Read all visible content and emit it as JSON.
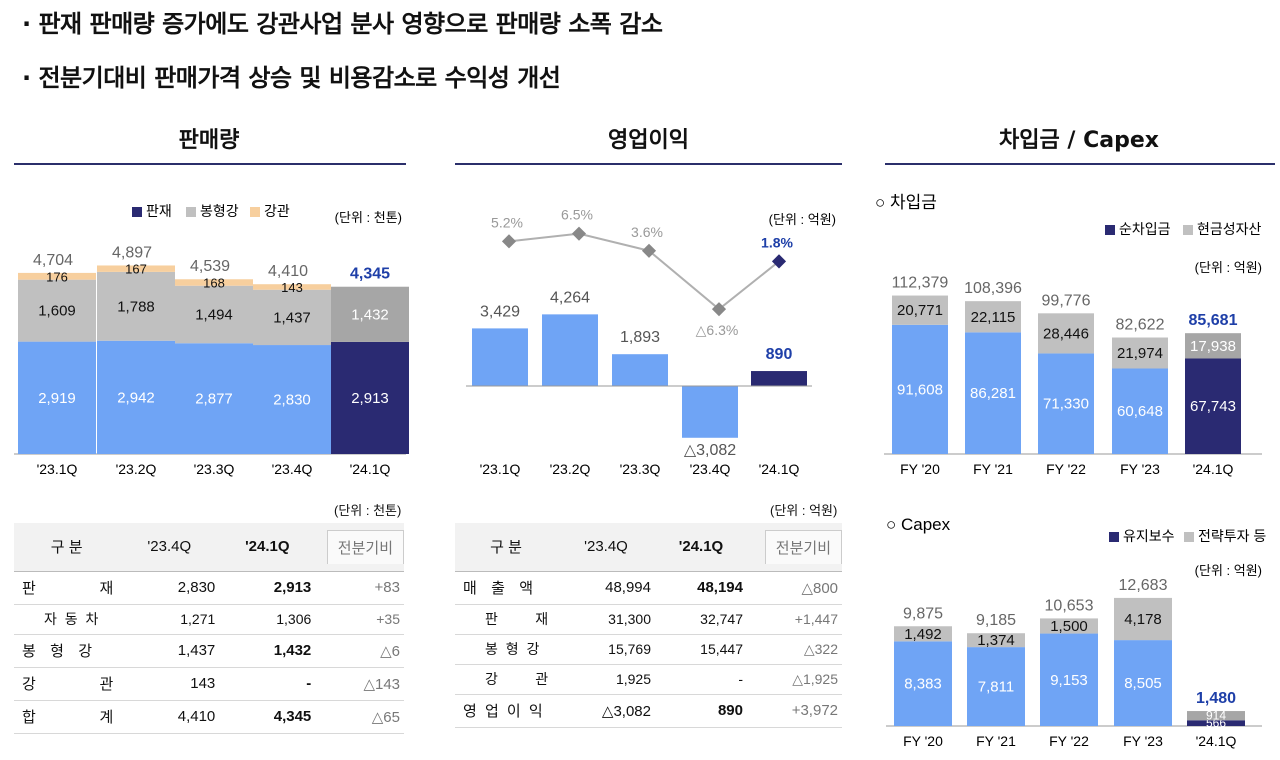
{
  "bullets": [
    "· 판재 판매량 증가에도 강관사업 분사 영향으로 판매량 소폭 감소",
    "· 전분기대비 판매가격 상승 및 비용감소로 수익성 개선"
  ],
  "sections": {
    "sales": "판매량",
    "op": "영업이익",
    "debt": "차입금 / Capex"
  },
  "colors": {
    "plate": "#2a2a72",
    "bar": "#6fa4f5",
    "grey": "#c0c0c0",
    "pipe": "#f7cf9e",
    "dark_value": "#1e3fa8",
    "section_line": "#2b2f6b"
  },
  "sales_chart": {
    "unit": "(단위 : 천톤)",
    "legend": [
      "판재",
      "봉형강",
      "강관"
    ],
    "categories": [
      "'23.1Q",
      "'23.2Q",
      "'23.3Q",
      "'23.4Q",
      "'24.1Q"
    ],
    "series": [
      {
        "name": "판재",
        "values": [
          2919,
          2942,
          2877,
          2830,
          2913
        ]
      },
      {
        "name": "봉형강",
        "values": [
          1609,
          1788,
          1494,
          1437,
          1432
        ]
      },
      {
        "name": "강관",
        "values": [
          176,
          167,
          168,
          143,
          0
        ]
      }
    ],
    "seg_labels": [
      [
        "2,919",
        "1,609",
        "176"
      ],
      [
        "2,942",
        "1,788",
        "167"
      ],
      [
        "2,877",
        "1,494",
        "168"
      ],
      [
        "2,830",
        "1,437",
        "143"
      ],
      [
        "2,913",
        "1,432",
        ""
      ]
    ],
    "totals": [
      "4,704",
      "4,897",
      "4,539",
      "4,410",
      "4,345"
    ],
    "total_values": [
      4704,
      4897,
      4539,
      4410,
      4345
    ]
  },
  "op_chart": {
    "unit": "(단위 : 억원)",
    "categories": [
      "'23.1Q",
      "'23.2Q",
      "'23.3Q",
      "'23.4Q",
      "'24.1Q"
    ],
    "values": [
      3429,
      4264,
      1893,
      -3082,
      890
    ],
    "value_labels": [
      "3,429",
      "4,264",
      "1,893",
      "△3,082",
      "890"
    ],
    "margin": [
      5.2,
      6.5,
      3.6,
      -6.3,
      1.8
    ],
    "margin_labels": [
      "5.2%",
      "6.5%",
      "3.6%",
      "△6.3%",
      "1.8%"
    ]
  },
  "debt_chart": {
    "heading": "○ 차입금",
    "unit": "(단위 : 억원)",
    "legend": [
      "순차입금",
      "현금성자산"
    ],
    "categories": [
      "FY '20",
      "FY '21",
      "FY '22",
      "FY '23",
      "'24.1Q"
    ],
    "series": [
      {
        "name": "순차입금",
        "values": [
          91608,
          86281,
          71330,
          60648,
          67743
        ]
      },
      {
        "name": "현금성자산",
        "values": [
          20771,
          22115,
          28446,
          21974,
          17938
        ]
      }
    ],
    "seg_labels": [
      [
        "91,608",
        "20,771"
      ],
      [
        "86,281",
        "22,115"
      ],
      [
        "71,330",
        "28,446"
      ],
      [
        "60,648",
        "21,974"
      ],
      [
        "67,743",
        "17,938"
      ]
    ],
    "totals": [
      "112,379",
      "108,396",
      "99,776",
      "82,622",
      "85,681"
    ],
    "total_values": [
      112379,
      108396,
      99776,
      82622,
      85681
    ]
  },
  "capex_chart": {
    "heading": "○ Capex",
    "unit": "(단위 : 억원)",
    "legend": [
      "유지보수",
      "전략투자 등"
    ],
    "categories": [
      "FY '20",
      "FY '21",
      "FY '22",
      "FY '23",
      "'24.1Q"
    ],
    "series": [
      {
        "name": "유지보수",
        "values": [
          8383,
          7811,
          9153,
          8505,
          566
        ]
      },
      {
        "name": "전략투자 등",
        "values": [
          1492,
          1374,
          1500,
          4178,
          914
        ]
      }
    ],
    "seg_labels": [
      [
        "8,383",
        "1,492"
      ],
      [
        "7,811",
        "1,374"
      ],
      [
        "9,153",
        "1,500"
      ],
      [
        "8,505",
        "4,178"
      ],
      [
        "566",
        "914"
      ]
    ],
    "totals": [
      "9,875",
      "9,185",
      "10,653",
      "12,683",
      "1,480"
    ],
    "total_values": [
      9875,
      9185,
      10653,
      12683,
      1480
    ]
  },
  "sales_table": {
    "unit": "(단위 : 천톤)",
    "headers": [
      "구 분",
      "'23.4Q",
      "'24.1Q",
      "전분기비"
    ],
    "rows": [
      {
        "label": "판          재",
        "prev": "2,830",
        "cur": "2,913",
        "cmp": "+83",
        "sub": false
      },
      {
        "label": "자 동 차",
        "prev": "1,271",
        "cur": "1,306",
        "cmp": "+35",
        "sub": true
      },
      {
        "label": "봉  형  강",
        "prev": "1,437",
        "cur": "1,432",
        "cmp": "△6",
        "sub": false
      },
      {
        "label": "강          관",
        "prev": "143",
        "cur": "-",
        "cmp": "△143",
        "sub": false
      },
      {
        "label": "합          계",
        "prev": "4,410",
        "cur": "4,345",
        "cmp": "△65",
        "sub": false
      }
    ]
  },
  "op_table": {
    "unit": "(단위 : 억원)",
    "headers": [
      "구 분",
      "'23.4Q",
      "'24.1Q",
      "전분기비"
    ],
    "rows": [
      {
        "label": "매  출  액",
        "prev": "48,994",
        "cur": "48,194",
        "cmp": "△800",
        "sub": false
      },
      {
        "label": "판      재",
        "prev": "31,300",
        "cur": "32,747",
        "cmp": "+1,447",
        "sub": true
      },
      {
        "label": "봉 형 강",
        "prev": "15,769",
        "cur": "15,447",
        "cmp": "△322",
        "sub": true
      },
      {
        "label": "강      관",
        "prev": "1,925",
        "cur": "-",
        "cmp": "△1,925",
        "sub": true
      },
      {
        "label": "영 업 이 익",
        "prev": "△3,082",
        "cur": "890",
        "cmp": "+3,972",
        "sub": false
      }
    ]
  }
}
